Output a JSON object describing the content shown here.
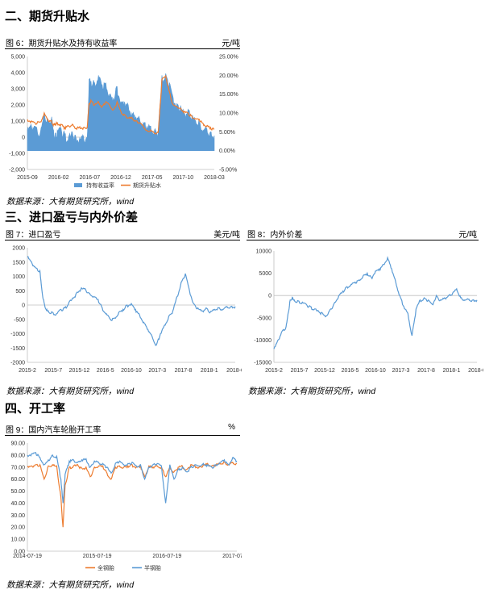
{
  "sections": {
    "s2": "二、期货升贴水",
    "s3": "三、进口盈亏与内外价差",
    "s4": "四、开工率"
  },
  "figures": {
    "fig6": {
      "title": "图 6：期货升贴水及持有收益率",
      "unit": "元/吨",
      "source": "数据来源：大有期货研究所，wind"
    },
    "fig7": {
      "title": "图 7：进口盈亏",
      "unit": "美元/吨",
      "source": "数据来源：大有期货研究所，wind"
    },
    "fig8": {
      "title": "图 8：内外价差",
      "unit": "元/吨",
      "source": "数据来源：大有期货研究所，wind"
    },
    "fig9": {
      "title": "图 9：国内汽车轮胎开工率",
      "unit": "%",
      "source": "数据来源：大有期货研究所，wind"
    }
  },
  "chart_data": [
    {
      "id": "fig6",
      "type": "area",
      "ylim": [
        -2000,
        5000
      ],
      "y2lim": [
        -5,
        25
      ],
      "yticks": [
        "5,000",
        "4,000",
        "3,000",
        "2,000",
        "1,000",
        "0",
        "-1,000",
        "-2,000"
      ],
      "y2ticks": [
        "25.00%",
        "20.00%",
        "15.00%",
        "10.00%",
        "5.00%",
        "0.00%",
        "-5.00%"
      ],
      "xticks": [
        "2015-09",
        "2016-02",
        "2016-07",
        "2016-12",
        "2017-05",
        "2017-10",
        "2018-03"
      ],
      "legend": [
        "持有收益率",
        "期货升贴水"
      ],
      "colors": [
        "#5b9bd5",
        "#ed7d31"
      ],
      "series": [
        {
          "name": "持有收益率",
          "axis": "right",
          "kind": "area",
          "x": [
            0,
            2,
            4,
            7,
            9,
            11,
            13,
            14,
            15,
            16,
            18,
            20,
            22,
            24,
            26,
            28,
            30,
            32,
            33,
            34,
            36,
            38,
            40,
            42,
            44,
            46,
            48,
            50,
            52,
            54,
            56,
            58,
            60,
            62,
            64,
            66,
            68,
            70,
            72,
            74,
            76,
            78,
            80,
            82,
            84,
            86,
            88,
            90,
            92,
            94,
            96,
            98,
            100
          ],
          "values": [
            5.5,
            7,
            6.5,
            5,
            10,
            8,
            9,
            5.5,
            4.5,
            5.5,
            6,
            4.5,
            3.5,
            5,
            3.5,
            3.5,
            3.8,
            3.5,
            19,
            18.5,
            18,
            20,
            17.5,
            18,
            15,
            14,
            17,
            13,
            13,
            12,
            10,
            9,
            8.5,
            7.5,
            6.5,
            6.5,
            5.5,
            5,
            20,
            20.5,
            18,
            14,
            12.5,
            12,
            10,
            11,
            9,
            8,
            7.5,
            5.5,
            6,
            5,
            4
          ]
        },
        {
          "name": "期货升贴水",
          "axis": "left",
          "kind": "line",
          "x": [
            0,
            2,
            4,
            7,
            9,
            11,
            13,
            14,
            15,
            16,
            18,
            20,
            22,
            24,
            26,
            28,
            30,
            32,
            33,
            34,
            36,
            38,
            40,
            42,
            44,
            46,
            48,
            50,
            52,
            54,
            56,
            58,
            60,
            62,
            64,
            66,
            68,
            70,
            72,
            74,
            76,
            78,
            80,
            82,
            84,
            86,
            88,
            90,
            92,
            94,
            96,
            98,
            100
          ],
          "values": [
            1100,
            1000,
            900,
            950,
            1500,
            1100,
            1000,
            800,
            850,
            900,
            800,
            600,
            700,
            800,
            550,
            650,
            600,
            600,
            2100,
            2300,
            2000,
            2200,
            1900,
            2200,
            2000,
            1700,
            2200,
            1600,
            1400,
            1200,
            1200,
            1000,
            900,
            700,
            400,
            450,
            250,
            300,
            3600,
            3800,
            2800,
            2000,
            1900,
            1800,
            1600,
            1500,
            1300,
            1150,
            1100,
            850,
            700,
            600,
            500
          ]
        }
      ]
    },
    {
      "id": "fig7",
      "type": "line",
      "ylim": [
        -2000,
        2000
      ],
      "yticks": [
        "2000",
        "1500",
        "1000",
        "500",
        "0",
        "-500",
        "-1000",
        "-1500",
        "-2000"
      ],
      "xticks": [
        "2015-2",
        "2015-7",
        "2015-12",
        "2016-5",
        "2016-10",
        "2017-3",
        "2017-8",
        "2018-1",
        "2018-6"
      ],
      "colors": [
        "#5b9bd5"
      ],
      "series": [
        {
          "name": "",
          "x": [
            0,
            2,
            4,
            6,
            7,
            8,
            9,
            10,
            12,
            14,
            16,
            18,
            20,
            22,
            24,
            26,
            28,
            30,
            32,
            34,
            36,
            38,
            40,
            42,
            44,
            46,
            48,
            50,
            52,
            54,
            56,
            58,
            60,
            62,
            64,
            66,
            68,
            70,
            72,
            74,
            76,
            78,
            80,
            82,
            84,
            86,
            88,
            90,
            92,
            94,
            96,
            98,
            100
          ],
          "values": [
            1700,
            1500,
            1300,
            1200,
            500,
            100,
            -150,
            -200,
            -250,
            -300,
            -150,
            -100,
            100,
            250,
            450,
            600,
            550,
            400,
            300,
            200,
            -100,
            -300,
            -500,
            -450,
            -250,
            -150,
            0,
            50,
            -150,
            -350,
            -600,
            -850,
            -1100,
            -1400,
            -1000,
            -700,
            -400,
            -200,
            300,
            800,
            1100,
            500,
            50,
            -100,
            -200,
            -100,
            -250,
            -150,
            -100,
            -150,
            -50,
            -50,
            -50
          ]
        }
      ]
    },
    {
      "id": "fig8",
      "type": "line",
      "ylim": [
        -15000,
        10000
      ],
      "yticks": [
        "10000",
        "5000",
        "0",
        "-5000",
        "-10000",
        "-15000"
      ],
      "xticks": [
        "2015-2",
        "2015-7",
        "2015-12",
        "2016-5",
        "2016-10",
        "2017-3",
        "2017-8",
        "2018-1",
        "2018-6"
      ],
      "colors": [
        "#5b9bd5"
      ],
      "series": [
        {
          "name": "",
          "x": [
            0,
            2,
            4,
            6,
            7,
            8,
            9,
            10,
            12,
            14,
            16,
            18,
            20,
            22,
            24,
            26,
            28,
            30,
            32,
            34,
            36,
            38,
            40,
            42,
            44,
            46,
            48,
            50,
            52,
            54,
            56,
            58,
            60,
            62,
            64,
            66,
            68,
            70,
            72,
            74,
            76,
            78,
            80,
            82,
            84,
            86,
            88,
            90,
            92,
            94,
            96,
            98,
            100
          ],
          "values": [
            -12000,
            -10000,
            -8000,
            -7000,
            -4000,
            -1000,
            -500,
            -1000,
            -1200,
            -1500,
            -2000,
            -2500,
            -3000,
            -3500,
            -4000,
            -4500,
            -3000,
            -1500,
            0,
            1000,
            2000,
            2500,
            3000,
            3500,
            4500,
            5000,
            4000,
            5500,
            6000,
            7000,
            8500,
            6000,
            3000,
            0,
            -2500,
            -4000,
            -9000,
            -3000,
            -1000,
            -500,
            -1000,
            -2000,
            0,
            -1000,
            -500,
            0,
            500,
            1500,
            -500,
            -1000,
            -800,
            -1000,
            -1000
          ]
        }
      ]
    },
    {
      "id": "fig9",
      "type": "line",
      "ylim": [
        0,
        90
      ],
      "yticks": [
        "90.00",
        "80.00",
        "70.00",
        "60.00",
        "50.00",
        "40.00",
        "30.00",
        "20.00",
        "10.00",
        "0.00"
      ],
      "xticks": [
        "2014-07-19",
        "2015-07-19",
        "2016-07-19",
        "2017-07-19"
      ],
      "legend": [
        "全钢胎",
        "半钢胎"
      ],
      "colors": [
        "#ed7d31",
        "#5b9bd5"
      ],
      "series": [
        {
          "name": "全钢胎",
          "x": [
            0,
            2,
            4,
            6,
            8,
            10,
            12,
            14,
            16,
            17,
            18,
            20,
            22,
            24,
            26,
            28,
            30,
            32,
            34,
            36,
            38,
            40,
            42,
            44,
            46,
            48,
            50,
            52,
            54,
            56,
            58,
            60,
            62,
            64,
            66,
            68,
            70,
            72,
            74,
            76,
            78,
            80,
            82,
            84,
            86,
            88,
            90,
            92,
            94,
            96,
            98,
            100
          ],
          "values": [
            70,
            71,
            72,
            72,
            60,
            71,
            72,
            71,
            45,
            20,
            55,
            70,
            71,
            72,
            69,
            70,
            62,
            70,
            71,
            71,
            65,
            60,
            70,
            71,
            70,
            71,
            72,
            70,
            71,
            62,
            71,
            70,
            71,
            70,
            62,
            70,
            66,
            70,
            71,
            68,
            72,
            71,
            70,
            72,
            73,
            71,
            72,
            73,
            74,
            72,
            74,
            73
          ]
        },
        {
          "name": "半钢胎",
          "x": [
            0,
            2,
            4,
            6,
            8,
            10,
            12,
            14,
            16,
            17,
            18,
            20,
            22,
            24,
            26,
            28,
            30,
            32,
            34,
            36,
            38,
            40,
            42,
            44,
            46,
            48,
            50,
            52,
            54,
            56,
            58,
            60,
            62,
            64,
            66,
            68,
            70,
            72,
            74,
            76,
            78,
            80,
            82,
            84,
            86,
            88,
            90,
            92,
            94,
            96,
            98,
            100
          ],
          "values": [
            80,
            81,
            82,
            78,
            72,
            76,
            80,
            79,
            60,
            40,
            64,
            75,
            76,
            74,
            76,
            77,
            70,
            75,
            74,
            73,
            70,
            65,
            73,
            75,
            72,
            73,
            74,
            71,
            72,
            60,
            70,
            72,
            73,
            71,
            40,
            72,
            60,
            68,
            70,
            66,
            70,
            72,
            71,
            73,
            72,
            70,
            72,
            74,
            76,
            72,
            78,
            75
          ]
        }
      ]
    }
  ]
}
